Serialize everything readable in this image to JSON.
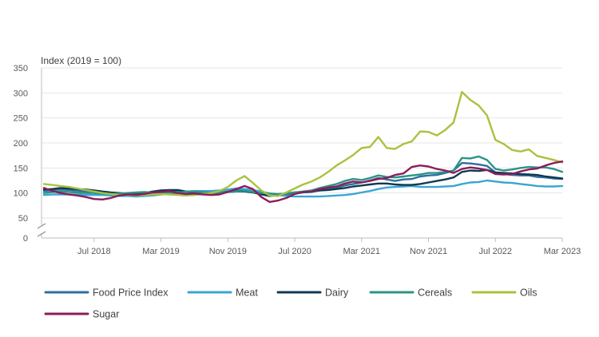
{
  "chart_data": {
    "type": "line",
    "title": "",
    "unit_label": "Index (2019 = 100)",
    "ylim": [
      0,
      350
    ],
    "yticks": [
      0,
      50,
      100,
      150,
      200,
      250,
      300,
      350
    ],
    "axis_break": true,
    "grid": true,
    "legend_position": "bottom",
    "x": [
      "2018-01",
      "2018-02",
      "2018-03",
      "2018-04",
      "2018-05",
      "2018-06",
      "2018-07",
      "2018-08",
      "2018-09",
      "2018-10",
      "2018-11",
      "2018-12",
      "2019-01",
      "2019-02",
      "2019-03",
      "2019-04",
      "2019-05",
      "2019-06",
      "2019-07",
      "2019-08",
      "2019-09",
      "2019-10",
      "2019-11",
      "2019-12",
      "2020-01",
      "2020-02",
      "2020-03",
      "2020-04",
      "2020-05",
      "2020-06",
      "2020-07",
      "2020-08",
      "2020-09",
      "2020-10",
      "2020-11",
      "2020-12",
      "2021-01",
      "2021-02",
      "2021-03",
      "2021-04",
      "2021-05",
      "2021-06",
      "2021-07",
      "2021-08",
      "2021-09",
      "2021-10",
      "2021-11",
      "2021-12",
      "2022-01",
      "2022-02",
      "2022-03",
      "2022-04",
      "2022-05",
      "2022-06",
      "2022-07",
      "2022-08",
      "2022-09",
      "2022-10",
      "2022-11",
      "2022-12",
      "2023-01",
      "2023-02",
      "2023-03"
    ],
    "xticks": [
      {
        "value": "2018-07",
        "label": "Jul 2018"
      },
      {
        "value": "2019-03",
        "label": "Mar 2019"
      },
      {
        "value": "2019-11",
        "label": "Nov 2019"
      },
      {
        "value": "2020-07",
        "label": "Jul 2020"
      },
      {
        "value": "2021-03",
        "label": "Mar 2021"
      },
      {
        "value": "2021-11",
        "label": "Nov 2021"
      },
      {
        "value": "2022-07",
        "label": "Jul 2022"
      },
      {
        "value": "2023-03",
        "label": "Mar 2023"
      }
    ],
    "series": [
      {
        "name": "Food Price Index",
        "color": "#2e6f9e",
        "values": [
          104,
          106,
          107,
          106,
          105,
          103,
          101,
          99,
          98,
          99,
          99,
          98,
          99,
          101,
          102,
          103,
          103,
          102,
          101,
          100,
          100,
          101,
          103,
          105,
          106,
          103,
          99,
          96,
          95,
          97,
          99,
          101,
          102,
          106,
          109,
          111,
          115,
          118,
          121,
          125,
          130,
          127,
          124,
          127,
          128,
          133,
          135,
          136,
          140,
          145,
          160,
          159,
          157,
          154,
          141,
          138,
          136,
          135,
          135,
          132,
          131,
          129,
          128
        ]
      },
      {
        "name": "Meat",
        "color": "#3aa5d6",
        "values": [
          96,
          97,
          97,
          97,
          97,
          96,
          96,
          96,
          95,
          94,
          94,
          93,
          94,
          95,
          97,
          99,
          101,
          103,
          104,
          104,
          104,
          105,
          107,
          109,
          108,
          106,
          103,
          99,
          96,
          94,
          93,
          93,
          93,
          93,
          94,
          95,
          96,
          98,
          101,
          104,
          108,
          111,
          112,
          113,
          114,
          112,
          112,
          112,
          113,
          114,
          118,
          121,
          122,
          125,
          123,
          121,
          120,
          118,
          116,
          114,
          113,
          113,
          114
        ]
      },
      {
        "name": "Dairy",
        "color": "#0f3a52",
        "values": [
          107,
          108,
          110,
          109,
          108,
          107,
          105,
          103,
          101,
          100,
          99,
          97,
          100,
          103,
          105,
          106,
          106,
          103,
          102,
          101,
          100,
          101,
          102,
          103,
          103,
          101,
          97,
          94,
          96,
          99,
          101,
          102,
          103,
          105,
          106,
          108,
          110,
          113,
          115,
          117,
          119,
          119,
          117,
          116,
          116,
          118,
          121,
          124,
          127,
          131,
          142,
          145,
          144,
          146,
          141,
          140,
          139,
          138,
          137,
          136,
          133,
          131,
          129
        ]
      },
      {
        "name": "Cereals",
        "color": "#2a9485",
        "values": [
          100,
          102,
          103,
          102,
          101,
          100,
          100,
          99,
          98,
          99,
          100,
          101,
          102,
          101,
          100,
          99,
          100,
          103,
          103,
          101,
          100,
          101,
          102,
          103,
          104,
          102,
          100,
          99,
          98,
          99,
          101,
          103,
          105,
          110,
          114,
          118,
          124,
          128,
          126,
          130,
          135,
          132,
          131,
          133,
          135,
          137,
          140,
          140,
          142,
          145,
          170,
          169,
          173,
          166,
          148,
          145,
          147,
          150,
          152,
          151,
          151,
          148,
          142
        ]
      },
      {
        "name": "Oils",
        "color": "#a9c23f",
        "values": [
          118,
          116,
          114,
          112,
          109,
          106,
          103,
          100,
          98,
          96,
          96,
          95,
          96,
          97,
          98,
          97,
          96,
          95,
          96,
          98,
          100,
          104,
          112,
          125,
          134,
          120,
          105,
          95,
          94,
          101,
          109,
          117,
          123,
          131,
          142,
          155,
          165,
          176,
          190,
          192,
          212,
          190,
          188,
          198,
          203,
          223,
          222,
          215,
          226,
          241,
          302,
          286,
          275,
          255,
          206,
          198,
          186,
          183,
          187,
          174,
          170,
          166,
          161
        ]
      },
      {
        "name": "Sugar",
        "color": "#8c1d5a",
        "values": [
          110,
          104,
          100,
          97,
          95,
          92,
          88,
          87,
          90,
          95,
          97,
          96,
          98,
          101,
          102,
          104,
          100,
          98,
          99,
          97,
          96,
          97,
          102,
          108,
          114,
          108,
          92,
          82,
          85,
          90,
          98,
          102,
          103,
          108,
          111,
          113,
          119,
          123,
          121,
          124,
          128,
          130,
          136,
          139,
          152,
          155,
          153,
          148,
          145,
          140,
          148,
          151,
          149,
          146,
          138,
          137,
          138,
          143,
          147,
          149,
          155,
          160,
          163
        ]
      }
    ]
  }
}
